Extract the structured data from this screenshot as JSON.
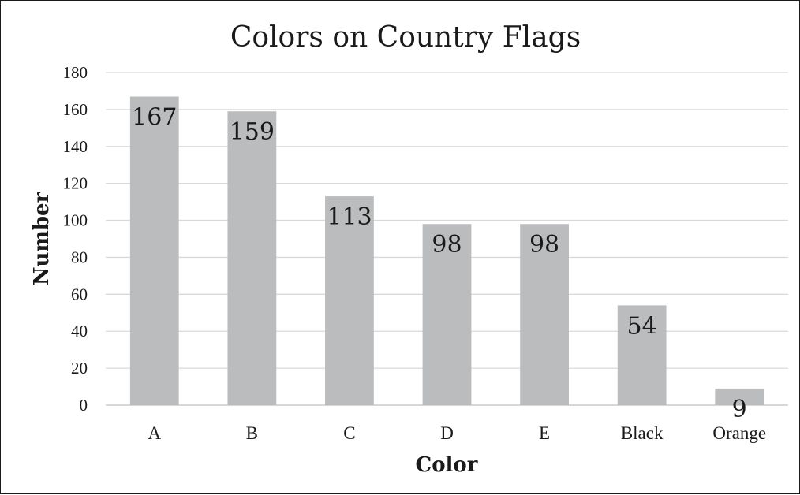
{
  "chart_data": {
    "type": "bar",
    "title": "Colors on Country Flags",
    "xlabel": "Color",
    "ylabel": "Number",
    "categories": [
      "A",
      "B",
      "C",
      "D",
      "E",
      "Black",
      "Orange"
    ],
    "values": [
      167,
      159,
      113,
      98,
      98,
      54,
      9
    ],
    "ylim": [
      0,
      180
    ],
    "yticks": [
      0,
      20,
      40,
      60,
      80,
      100,
      120,
      140,
      160,
      180
    ],
    "grid": true,
    "legend": "none",
    "data_labels": "inside-end",
    "colors": {
      "bar": "#bbbcbe",
      "grid": "#d9d9d9",
      "text": "#1a1a1a"
    }
  }
}
